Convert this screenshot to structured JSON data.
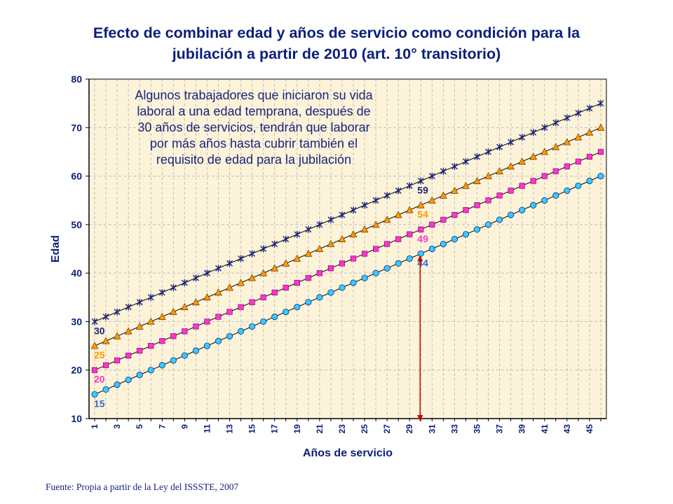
{
  "chart_data": {
    "type": "line",
    "title_lines": [
      "Efecto de combinar edad y años de servicio como condición para la",
      "jubilación a partir de 2010 (art. 10° transitorio)"
    ],
    "xlabel": "Años de servicio",
    "ylabel": "Edad",
    "x": [
      1,
      2,
      3,
      4,
      5,
      6,
      7,
      8,
      9,
      10,
      11,
      12,
      13,
      14,
      15,
      16,
      17,
      18,
      19,
      20,
      21,
      22,
      23,
      24,
      25,
      26,
      27,
      28,
      29,
      30,
      31,
      32,
      33,
      34,
      35,
      36,
      37,
      38,
      39,
      40,
      41,
      42,
      43,
      44,
      45,
      46
    ],
    "x_tick_labels": [
      "1",
      "3",
      "5",
      "7",
      "9",
      "11",
      "13",
      "15",
      "17",
      "19",
      "21",
      "23",
      "25",
      "27",
      "29",
      "31",
      "33",
      "35",
      "37",
      "39",
      "41",
      "43",
      "45"
    ],
    "ylim": [
      10,
      80
    ],
    "y_ticks": [
      10,
      20,
      30,
      40,
      50,
      60,
      70,
      80
    ],
    "grid": {
      "horizontal": true,
      "vertical": true,
      "style": "dashed"
    },
    "series": [
      {
        "start": 30,
        "slope": 1,
        "marker": "star",
        "color": "#1a237e",
        "start_label": "30",
        "label_at_30": "59",
        "label_color": "#1a237e"
      },
      {
        "start": 25,
        "slope": 1,
        "marker": "triangle",
        "color": "#ff9900",
        "start_label": "25",
        "label_at_30": "54",
        "label_color": "#ff9900"
      },
      {
        "start": 20,
        "slope": 1,
        "marker": "square",
        "color": "#ff33cc",
        "start_label": "20",
        "label_at_30": "49",
        "label_color": "#ff33cc"
      },
      {
        "start": 15,
        "slope": 1,
        "marker": "circle",
        "color": "#33ccff",
        "start_label": "15",
        "label_at_30": "44",
        "label_color": "#3366cc"
      }
    ],
    "arrow": {
      "x": 30,
      "from_y": 10,
      "to_y": 44,
      "color": "#cc0000"
    },
    "annotation_lines": [
      "Algunos trabajadores que iniciaron su vida",
      "laboral a una edad temprana, después de",
      "30 años de servicios, tendrán que laborar",
      "por más años hasta cubrir también el",
      "requisito de edad para la jubilación"
    ],
    "colors": {
      "plot_bg": "#fdf3d9",
      "axis_text": "#0b1f7a",
      "grid": "#bfbfbf"
    }
  },
  "source": "Fuente: Propia a partir de la Ley del ISSSTE, 2007"
}
